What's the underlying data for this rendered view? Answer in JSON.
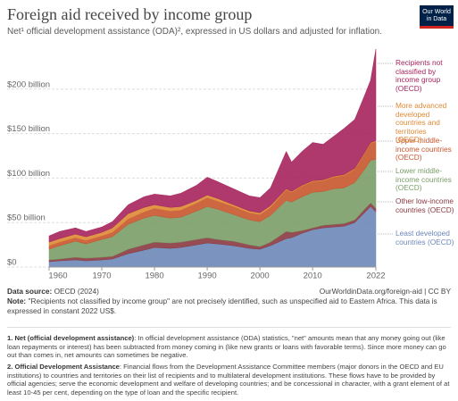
{
  "chart_data": {
    "type": "area",
    "stacked": true,
    "title": "Foreign aid received by income group",
    "subtitle": "Net¹ official development assistance (ODA)², expressed in US dollars and adjusted for inflation.",
    "x": [
      1960,
      1962,
      1965,
      1967,
      1970,
      1972,
      1975,
      1978,
      1980,
      1983,
      1985,
      1988,
      1990,
      1992,
      1995,
      1998,
      2000,
      2002,
      2005,
      2006,
      2008,
      2010,
      2012,
      2014,
      2016,
      2018,
      2020,
      2021,
      2022
    ],
    "xlim": [
      1960,
      2022
    ],
    "xticks": [
      1960,
      1970,
      1980,
      1990,
      2000,
      2010,
      2022
    ],
    "ylim": [
      0,
      250
    ],
    "yticks": [
      {
        "value": 0,
        "label": "$0"
      },
      {
        "value": 50,
        "label": "$50 billion"
      },
      {
        "value": 100,
        "label": "$100 billion"
      },
      {
        "value": 150,
        "label": "$150 billion"
      },
      {
        "value": 200,
        "label": "$200 billion"
      }
    ],
    "grid": true,
    "series": [
      {
        "name": "Least developed countries (OECD)",
        "color": "#6d87b8",
        "values": [
          6,
          7,
          8,
          7,
          8,
          9,
          15,
          19,
          22,
          21,
          22,
          25,
          27,
          26,
          24,
          21,
          20,
          24,
          32,
          33,
          38,
          42,
          44,
          45,
          46,
          50,
          62,
          68,
          62
        ]
      },
      {
        "name": "Other low-income countries (OECD)",
        "color": "#8a3a40",
        "values": [
          2,
          2,
          3,
          3,
          3,
          3,
          5,
          6,
          6,
          6,
          6,
          6,
          6,
          5,
          5,
          4,
          3,
          4,
          8,
          6,
          3,
          2,
          3,
          3,
          3,
          3,
          4,
          4,
          4
        ]
      },
      {
        "name": "Lower middle-income countries (OECD)",
        "color": "#7a9d68",
        "values": [
          12,
          15,
          18,
          16,
          20,
          22,
          28,
          30,
          30,
          28,
          28,
          32,
          35,
          34,
          30,
          28,
          28,
          30,
          35,
          34,
          38,
          40,
          38,
          40,
          40,
          42,
          45,
          48,
          55
        ]
      },
      {
        "name": "Upper middle-income countries (OECD)",
        "color": "#c7562e",
        "values": [
          4,
          4,
          4,
          4,
          4,
          5,
          6,
          7,
          8,
          8,
          8,
          9,
          10,
          9,
          9,
          8,
          8,
          9,
          12,
          11,
          12,
          12,
          12,
          13,
          14,
          15,
          18,
          19,
          20
        ]
      },
      {
        "name": "More advanced developed countries and territories (OECD)",
        "color": "#de8a35",
        "values": [
          4,
          4,
          4,
          4,
          4,
          5,
          6,
          5,
          4,
          4,
          4,
          3,
          3,
          3,
          2,
          2,
          2,
          2,
          1,
          1,
          1,
          1,
          1,
          1,
          1,
          1,
          1,
          1,
          1
        ]
      },
      {
        "name": "Recipients not classified by income group (OECD)",
        "color": "#a6245c",
        "values": [
          7,
          8,
          7,
          6,
          6,
          7,
          10,
          12,
          12,
          13,
          15,
          17,
          20,
          19,
          18,
          17,
          17,
          20,
          42,
          33,
          38,
          43,
          40,
          45,
          52,
          55,
          65,
          70,
          103
        ]
      }
    ]
  },
  "footer": {
    "source_label": "Data source:",
    "source": "OECD (2024)",
    "url": "OurWorldinData.org/foreign-aid | CC BY",
    "note_label": "Note:",
    "note": "\"Recipients not classified by income group\" are not precisely identified, such as unspecified aid to Eastern Africa. This data is expressed in constant 2022 US$.",
    "footnote1_label": "1. Net (official development assistance)",
    "footnote1": ": In official development assistance (ODA) statistics, \"net\" amounts mean that any money going out (like loan repayments or interest) has been subtracted from money coming in (like new grants or loans with favorable terms). Since more money can go out than comes in, net amounts can sometimes be negative.",
    "footnote2_label": "2. Official Development Assistance",
    "footnote2": ": Financial flows from the Development Assistance Committee members (major donors in the OECD and EU institutions) to countries and territories on their list of recipients and to multilateral development institutions. These flows have to be provided by official agencies; serve the economic development and welfare of developing countries; and be concessional in character, with a grant element of at least 10-45 per cent, depending on the type of loan and the specific recipient."
  },
  "logo": "Our World in Data"
}
